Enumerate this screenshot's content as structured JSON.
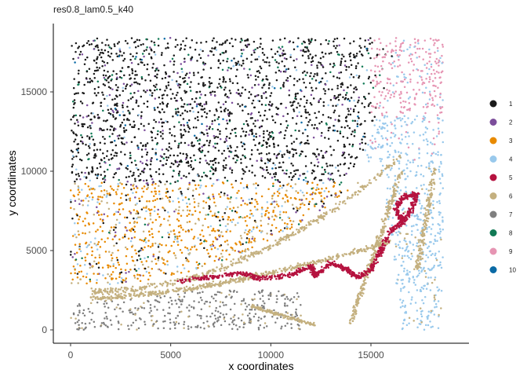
{
  "chart_data": {
    "type": "scatter",
    "title": "res0.8_lam0.5_k40",
    "xlabel": "x coordinates",
    "ylabel": "y coordinates",
    "xlim": [
      -800,
      19500
    ],
    "ylim": [
      -800,
      19500
    ],
    "x_ticks": [
      0,
      5000,
      10000,
      15000
    ],
    "y_ticks": [
      0,
      5000,
      10000,
      15000
    ],
    "x_tick_labels": [
      "0",
      "5000",
      "10000",
      "15000"
    ],
    "y_tick_labels": [
      "0",
      "5000",
      "10000",
      "15000"
    ],
    "grid": false,
    "legend_position": "right",
    "point_count_approx": 5500,
    "series": [
      {
        "name": "1",
        "color": "#1a1a1a",
        "region": "upper-left block, x 0–15000, y 9000–18500"
      },
      {
        "name": "2",
        "color": "#7c4e9b",
        "region": "scattered within cluster 1 area"
      },
      {
        "name": "3",
        "color": "#e88a00",
        "region": "band x 0–14000, y 3000–9500"
      },
      {
        "name": "4",
        "color": "#99c9ec",
        "region": "right edge x 13500–18500 and upper right"
      },
      {
        "name": "5",
        "color": "#b5123f",
        "region": "thin winding curve from x 5000,y 3000 to x 17000,y 9000"
      },
      {
        "name": "6",
        "color": "#c4b07f",
        "region": "thin arc from x 1000,y 2000 through x 16000,y 10400 down to x 14000,y 500"
      },
      {
        "name": "7",
        "color": "#7f7f7f",
        "region": "lower-left block x 0–11500, y 0–2500"
      },
      {
        "name": "8",
        "color": "#117a55",
        "region": "scattered within cluster 1 area"
      },
      {
        "name": "9",
        "color": "#e695b3",
        "region": "upper right corner x 15000–18500, y 13500–18500"
      },
      {
        "name": "10",
        "color": "#0a6aa5",
        "region": "sparse, scattered"
      }
    ]
  }
}
